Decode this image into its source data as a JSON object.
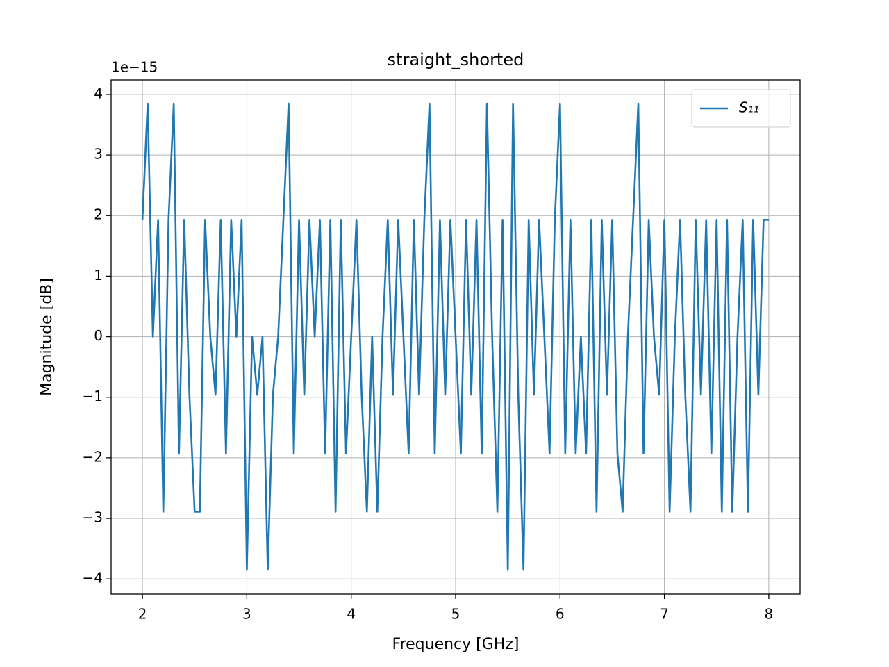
{
  "chart_data": {
    "type": "line",
    "title": "straight_shorted",
    "x_label": "Frequency [GHz]",
    "y_label": "Magnitude [dB]",
    "y_offset_label": "1e−15",
    "x": [
      2.0,
      2.05,
      2.1,
      2.15,
      2.2,
      2.25,
      2.3,
      2.35,
      2.4,
      2.45,
      2.5,
      2.55,
      2.6,
      2.65,
      2.7,
      2.75,
      2.8,
      2.85,
      2.9,
      2.95,
      3.0,
      3.05,
      3.1,
      3.15,
      3.2,
      3.25,
      3.3,
      3.35,
      3.4,
      3.45,
      3.5,
      3.55,
      3.6,
      3.65,
      3.7,
      3.75,
      3.8,
      3.85,
      3.9,
      3.95,
      4.0,
      4.05,
      4.1,
      4.15,
      4.2,
      4.25,
      4.3,
      4.35,
      4.4,
      4.45,
      4.5,
      4.55,
      4.6,
      4.65,
      4.7,
      4.75,
      4.8,
      4.85,
      4.9,
      4.95,
      5.0,
      5.05,
      5.1,
      5.15,
      5.2,
      5.25,
      5.3,
      5.35,
      5.4,
      5.45,
      5.5,
      5.55,
      5.6,
      5.65,
      5.7,
      5.75,
      5.8,
      5.85,
      5.9,
      5.95,
      6.0,
      6.05,
      6.1,
      6.15,
      6.2,
      6.25,
      6.3,
      6.35,
      6.4,
      6.45,
      6.5,
      6.55,
      6.6,
      6.65,
      6.7,
      6.75,
      6.8,
      6.85,
      6.9,
      6.95,
      7.0,
      7.05,
      7.1,
      7.15,
      7.2,
      7.25,
      7.3,
      7.35,
      7.4,
      7.45,
      7.5,
      7.55,
      7.6,
      7.65,
      7.7,
      7.75,
      7.8,
      7.85,
      7.9,
      7.95,
      8.0
    ],
    "series": [
      {
        "name": "S₁₁",
        "color": "#1f77b4",
        "values": [
          1.93,
          3.85,
          0,
          1.93,
          -2.89,
          1.93,
          3.85,
          -1.93,
          1.93,
          -0.96,
          -2.89,
          -2.89,
          1.93,
          0,
          -0.96,
          1.93,
          -1.93,
          1.93,
          0,
          1.93,
          -3.85,
          0,
          -0.96,
          0,
          -3.85,
          -0.96,
          0,
          1.93,
          3.85,
          -1.93,
          1.93,
          -0.96,
          1.93,
          0,
          1.93,
          -1.93,
          1.93,
          -2.89,
          1.93,
          -1.93,
          0,
          1.93,
          -0.96,
          -2.89,
          0,
          -2.89,
          0,
          1.93,
          -0.96,
          1.93,
          0,
          -1.93,
          1.93,
          -0.96,
          1.93,
          3.85,
          -1.93,
          1.93,
          -0.96,
          1.93,
          0,
          -1.93,
          1.93,
          -0.96,
          1.93,
          -1.93,
          3.85,
          0,
          -2.89,
          1.93,
          -3.85,
          3.85,
          -0.96,
          -3.85,
          1.93,
          -0.96,
          1.93,
          0,
          -1.93,
          1.93,
          3.85,
          -1.93,
          1.93,
          -1.93,
          0,
          -1.93,
          1.93,
          -2.89,
          1.93,
          -0.96,
          1.93,
          -1.93,
          -2.89,
          0,
          1.93,
          3.85,
          -1.93,
          1.93,
          0,
          -0.96,
          1.93,
          -2.89,
          0,
          1.93,
          -0.96,
          -2.89,
          1.93,
          -0.96,
          1.93,
          -1.93,
          1.93,
          -2.89,
          1.93,
          -2.89,
          0,
          1.93,
          -2.89,
          1.93,
          -0.96,
          1.93,
          1.93
        ]
      }
    ],
    "xlim": [
      1.7,
      8.3
    ],
    "ylim": [
      -4.25,
      4.24
    ],
    "xticks": [
      2,
      3,
      4,
      5,
      6,
      7,
      8
    ],
    "yticks": [
      {
        "value": -4,
        "label": "−4"
      },
      {
        "value": -3,
        "label": "−3"
      },
      {
        "value": -2,
        "label": "−2"
      },
      {
        "value": -1,
        "label": "−1"
      },
      0,
      1,
      2,
      3,
      4
    ],
    "grid": true,
    "legend": "upper right"
  }
}
